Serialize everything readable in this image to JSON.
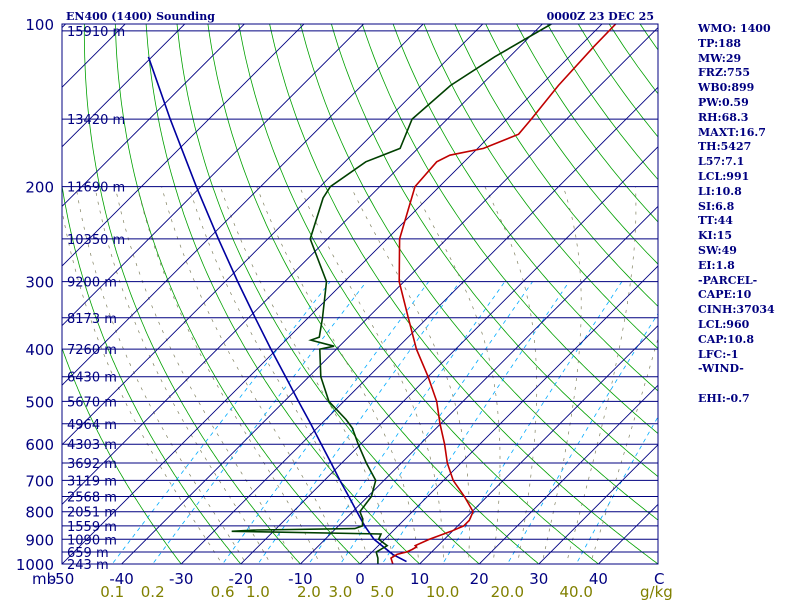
{
  "colors": {
    "isobar": "#000080",
    "isotherm": "#000080",
    "dry_adiabat": "#00a000",
    "moist_adiabat": "#808060",
    "mixing_ratio": "#00aaff",
    "temperature": "#c00000",
    "dewpoint": "#004000",
    "parcel": "#0000a0",
    "axis_text": "#000080",
    "mixing_text": "#808000"
  },
  "chart_data": {
    "type": "skew-t",
    "title": "EN400 (1400) Sounding",
    "valid_time": "0000Z 23 DEC 25",
    "y_unit": "mb",
    "x_unit": "C",
    "mixing_unit": "g/kg",
    "ylim": [
      1000,
      100
    ],
    "xlim": [
      -50,
      50
    ],
    "skew_deg_per_log": 1,
    "pressure_ticks": [
      {
        "p": 100,
        "label": "100"
      },
      {
        "p": 200,
        "label": "200"
      },
      {
        "p": 300,
        "label": "300"
      },
      {
        "p": 400,
        "label": "400"
      },
      {
        "p": 500,
        "label": "500"
      },
      {
        "p": 600,
        "label": "600"
      },
      {
        "p": 700,
        "label": "700"
      },
      {
        "p": 800,
        "label": "800"
      },
      {
        "p": 900,
        "label": "900"
      },
      {
        "p": 1000,
        "label": "1000"
      }
    ],
    "height_labels": [
      {
        "p": 103,
        "label": "15910 m"
      },
      {
        "p": 150,
        "label": "13420 m"
      },
      {
        "p": 200,
        "label": "11690 m"
      },
      {
        "p": 250,
        "label": "10350 m"
      },
      {
        "p": 300,
        "label": "9200 m"
      },
      {
        "p": 350,
        "label": "8173 m"
      },
      {
        "p": 400,
        "label": "7260 m"
      },
      {
        "p": 450,
        "label": "6430 m"
      },
      {
        "p": 500,
        "label": "5670 m"
      },
      {
        "p": 550,
        "label": "4964 m"
      },
      {
        "p": 600,
        "label": "4303 m"
      },
      {
        "p": 650,
        "label": "3692 m"
      },
      {
        "p": 700,
        "label": "3119 m"
      },
      {
        "p": 750,
        "label": "2568 m"
      },
      {
        "p": 800,
        "label": "2051 m"
      },
      {
        "p": 850,
        "label": "1559 m"
      },
      {
        "p": 900,
        "label": "1090 m"
      },
      {
        "p": 950,
        "label": "659 m"
      },
      {
        "p": 1000,
        "label": "243 m"
      }
    ],
    "temp_ticks": [
      {
        "t": -50,
        "label": "-50"
      },
      {
        "t": -40,
        "label": "-40"
      },
      {
        "t": -30,
        "label": "-30"
      },
      {
        "t": -20,
        "label": "-20"
      },
      {
        "t": -10,
        "label": "-10"
      },
      {
        "t": 0,
        "label": "0"
      },
      {
        "t": 10,
        "label": "10"
      },
      {
        "t": 20,
        "label": "20"
      },
      {
        "t": 30,
        "label": "30"
      },
      {
        "t": 40,
        "label": "40"
      }
    ],
    "mixing_ratio_ticks": [
      {
        "w": 0.1,
        "label": "0.1"
      },
      {
        "w": 0.2,
        "label": "0.2"
      },
      {
        "w": 0.6,
        "label": "0.6"
      },
      {
        "w": 1.0,
        "label": "1.0"
      },
      {
        "w": 2.0,
        "label": "2.0"
      },
      {
        "w": 3.0,
        "label": "3.0"
      },
      {
        "w": 5.0,
        "label": "5.0"
      },
      {
        "w": 10.0,
        "label": "10.0"
      },
      {
        "w": 20.0,
        "label": "20.0"
      },
      {
        "w": 40.0,
        "label": "40.0"
      }
    ],
    "temperature_profile": [
      {
        "p": 1000,
        "t": 5.5
      },
      {
        "p": 975,
        "t": 4.2
      },
      {
        "p": 960,
        "t": 4.6
      },
      {
        "p": 950,
        "t": 5.8
      },
      {
        "p": 940,
        "t": 6.3
      },
      {
        "p": 930,
        "t": 6.6
      },
      {
        "p": 925,
        "t": 6.2
      },
      {
        "p": 900,
        "t": 7.5
      },
      {
        "p": 870,
        "t": 9.8
      },
      {
        "p": 850,
        "t": 11.0
      },
      {
        "p": 830,
        "t": 11.0
      },
      {
        "p": 800,
        "t": 10.2
      },
      {
        "p": 750,
        "t": 6.2
      },
      {
        "p": 700,
        "t": 1.6
      },
      {
        "p": 650,
        "t": -2.3
      },
      {
        "p": 600,
        "t": -5.9
      },
      {
        "p": 550,
        "t": -10.1
      },
      {
        "p": 500,
        "t": -14.4
      },
      {
        "p": 450,
        "t": -20.0
      },
      {
        "p": 400,
        "t": -26.6
      },
      {
        "p": 350,
        "t": -33.2
      },
      {
        "p": 300,
        "t": -40.8
      },
      {
        "p": 250,
        "t": -47.9
      },
      {
        "p": 200,
        "t": -54.1
      },
      {
        "p": 180,
        "t": -54.6
      },
      {
        "p": 175,
        "t": -53.5
      },
      {
        "p": 170,
        "t": -49.0
      },
      {
        "p": 160,
        "t": -45.5
      },
      {
        "p": 150,
        "t": -45.9
      },
      {
        "p": 130,
        "t": -47.0
      },
      {
        "p": 110,
        "t": -47.6
      },
      {
        "p": 100,
        "t": -47.7
      }
    ],
    "dewpoint_profile": [
      {
        "p": 1000,
        "t": 3.0
      },
      {
        "p": 975,
        "t": 2.0
      },
      {
        "p": 950,
        "t": 0.7
      },
      {
        "p": 925,
        "t": 1.5
      },
      {
        "p": 900,
        "t": -1.0
      },
      {
        "p": 880,
        "t": -1.5
      },
      {
        "p": 870,
        "t": -27.0
      },
      {
        "p": 865,
        "t": -23.0
      },
      {
        "p": 860,
        "t": -6.8
      },
      {
        "p": 850,
        "t": -6.0
      },
      {
        "p": 825,
        "t": -7.1
      },
      {
        "p": 800,
        "t": -8.8
      },
      {
        "p": 750,
        "t": -9.4
      },
      {
        "p": 700,
        "t": -11.4
      },
      {
        "p": 650,
        "t": -15.9
      },
      {
        "p": 600,
        "t": -20.4
      },
      {
        "p": 560,
        "t": -24.1
      },
      {
        "p": 540,
        "t": -26.6
      },
      {
        "p": 500,
        "t": -32.5
      },
      {
        "p": 450,
        "t": -38.0
      },
      {
        "p": 400,
        "t": -42.8
      },
      {
        "p": 395,
        "t": -40.9
      },
      {
        "p": 385,
        "t": -45.8
      },
      {
        "p": 380,
        "t": -44.9
      },
      {
        "p": 350,
        "t": -47.6
      },
      {
        "p": 300,
        "t": -53.0
      },
      {
        "p": 250,
        "t": -62.9
      },
      {
        "p": 210,
        "t": -67.6
      },
      {
        "p": 200,
        "t": -68.3
      },
      {
        "p": 180,
        "t": -66.5
      },
      {
        "p": 170,
        "t": -63.0
      },
      {
        "p": 150,
        "t": -65.9
      },
      {
        "p": 130,
        "t": -65.1
      },
      {
        "p": 115,
        "t": -62.5
      },
      {
        "p": 100,
        "t": -58.5
      }
    ],
    "parcel_profile": [
      {
        "p": 990,
        "t": 7.4
      },
      {
        "p": 960,
        "t": 3.9
      },
      {
        "p": 900,
        "t": -1.8
      },
      {
        "p": 850,
        "t": -5.6
      },
      {
        "p": 800,
        "t": -9.3
      },
      {
        "p": 750,
        "t": -13.2
      },
      {
        "p": 700,
        "t": -17.4
      },
      {
        "p": 650,
        "t": -21.8
      },
      {
        "p": 600,
        "t": -26.6
      },
      {
        "p": 550,
        "t": -31.8
      },
      {
        "p": 500,
        "t": -37.6
      },
      {
        "p": 450,
        "t": -43.9
      },
      {
        "p": 400,
        "t": -51.0
      },
      {
        "p": 350,
        "t": -58.9
      },
      {
        "p": 300,
        "t": -67.9
      },
      {
        "p": 250,
        "t": -78.3
      },
      {
        "p": 200,
        "t": -90.8
      },
      {
        "p": 150,
        "t": -106.5
      },
      {
        "p": 115,
        "t": -120.6
      }
    ]
  },
  "indices": [
    {
      "label": "WMO: 1400"
    },
    {
      "label": "TP:188"
    },
    {
      "label": "MW:29"
    },
    {
      "label": "FRZ:755"
    },
    {
      "label": "WB0:899"
    },
    {
      "label": "PW:0.59"
    },
    {
      "label": "RH:68.3"
    },
    {
      "label": "MAXT:16.7"
    },
    {
      "label": "TH:5427"
    },
    {
      "label": "L57:7.1"
    },
    {
      "label": "LCL:991"
    },
    {
      "label": "LI:10.8"
    },
    {
      "label": "SI:6.8"
    },
    {
      "label": "TT:44"
    },
    {
      "label": "KI:15"
    },
    {
      "label": "SW:49"
    },
    {
      "label": "EI:1.8"
    },
    {
      "label": "-PARCEL-"
    },
    {
      "label": "CAPE:10"
    },
    {
      "label": "CINH:37034"
    },
    {
      "label": "LCL:960"
    },
    {
      "label": "CAP:10.8"
    },
    {
      "label": "LFC:-1"
    },
    {
      "label": "-WIND-"
    },
    {
      "label": ""
    },
    {
      "label": "EHI:-0.7"
    }
  ]
}
